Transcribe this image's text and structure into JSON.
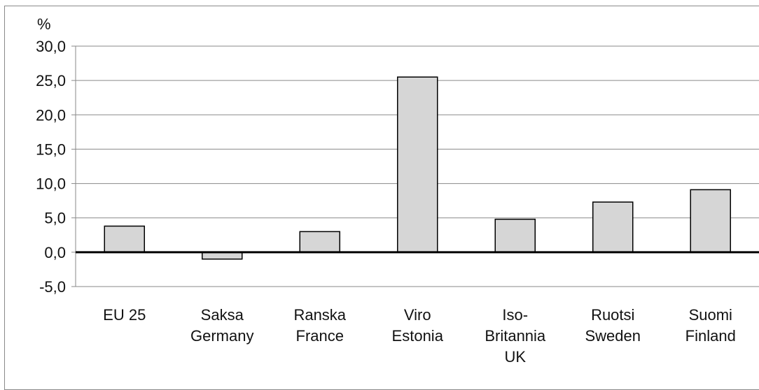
{
  "chart_data": {
    "type": "bar",
    "unit_label": "%",
    "categories": [
      [
        "EU 25"
      ],
      [
        "Saksa",
        "Germany"
      ],
      [
        "Ranska",
        "France"
      ],
      [
        "Viro",
        "Estonia"
      ],
      [
        "Iso-",
        "Britannia",
        "UK"
      ],
      [
        "Ruotsi",
        "Sweden"
      ],
      [
        "Suomi",
        "Finland"
      ]
    ],
    "values": [
      3.8,
      -1.0,
      3.0,
      25.5,
      4.8,
      7.3,
      9.1
    ],
    "ylim": [
      -5,
      30
    ],
    "yticks": [
      -5,
      0,
      5,
      10,
      15,
      20,
      25,
      30
    ],
    "ytick_labels": [
      "-5,0",
      "0,0",
      "5,0",
      "10,0",
      "15,0",
      "20,0",
      "25,0",
      "30,0"
    ],
    "grid": true,
    "colors": {
      "bar_fill": "#d6d6d6",
      "bar_stroke": "#000000",
      "grid": "#8a8a8a",
      "axis": "#000000"
    }
  }
}
